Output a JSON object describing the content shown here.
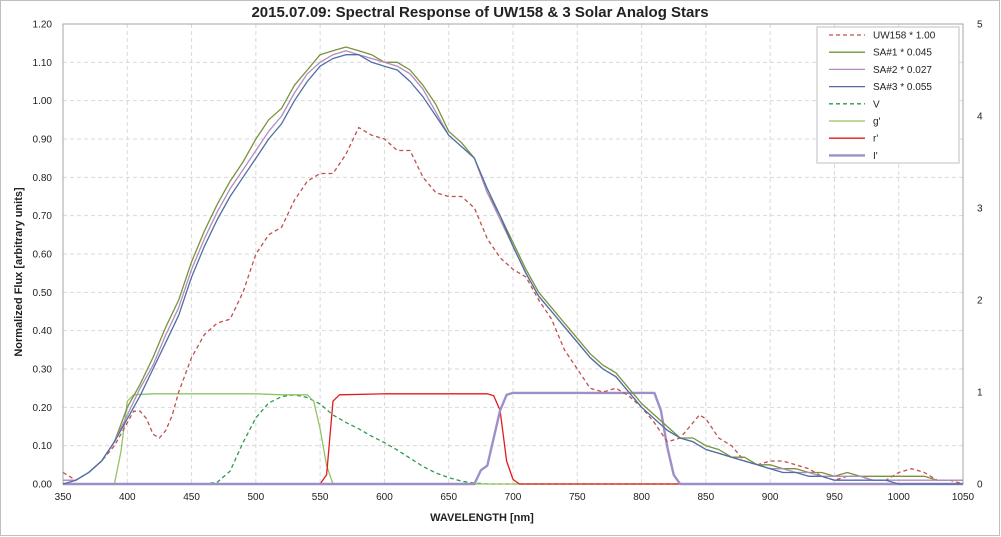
{
  "chart_data": {
    "type": "line",
    "title": "2015.07.09: Spectral Response of UW158 & 3 Solar Analog Stars",
    "xlabel": "WAVELENGTH [nm]",
    "ylabel": "Normalized Flux [arbitrary units]",
    "xlim": [
      350,
      1050
    ],
    "ylim": [
      0,
      1.2
    ],
    "y2lim": [
      0,
      5
    ],
    "grid": true,
    "legend_position": "top-right",
    "x_ticks": [
      "350",
      "400",
      "450",
      "500",
      "550",
      "600",
      "650",
      "700",
      "750",
      "800",
      "850",
      "900",
      "950",
      "1000",
      "1050"
    ],
    "y_ticks": [
      "0.00",
      "0.10",
      "0.20",
      "0.30",
      "0.40",
      "0.50",
      "0.60",
      "0.70",
      "0.80",
      "0.90",
      "1.00",
      "1.10",
      "1.20"
    ],
    "y2_ticks": [
      "0",
      "1",
      "2",
      "3",
      "4",
      "5"
    ],
    "series": [
      {
        "name": "UW158 * 1.00",
        "axis": "left",
        "color": "#c0504d",
        "style": "dashed",
        "x": [
          350,
          360,
          370,
          380,
          390,
          400,
          405,
          410,
          415,
          420,
          425,
          430,
          435,
          440,
          450,
          460,
          470,
          480,
          490,
          500,
          510,
          520,
          530,
          540,
          550,
          560,
          570,
          580,
          590,
          600,
          610,
          620,
          630,
          640,
          650,
          660,
          670,
          680,
          690,
          700,
          710,
          720,
          730,
          740,
          750,
          760,
          770,
          780,
          790,
          800,
          810,
          820,
          830,
          840,
          845,
          850,
          860,
          870,
          880,
          890,
          900,
          910,
          920,
          930,
          940,
          950,
          960,
          970,
          980,
          990,
          1000,
          1010,
          1020,
          1030,
          1040,
          1050
        ],
        "y": [
          0.03,
          0.01,
          0.03,
          0.06,
          0.1,
          0.16,
          0.19,
          0.19,
          0.17,
          0.13,
          0.12,
          0.14,
          0.18,
          0.24,
          0.33,
          0.39,
          0.42,
          0.43,
          0.5,
          0.6,
          0.65,
          0.67,
          0.74,
          0.79,
          0.81,
          0.81,
          0.86,
          0.93,
          0.91,
          0.9,
          0.87,
          0.87,
          0.8,
          0.76,
          0.75,
          0.75,
          0.72,
          0.64,
          0.59,
          0.56,
          0.54,
          0.48,
          0.43,
          0.35,
          0.3,
          0.25,
          0.24,
          0.25,
          0.23,
          0.2,
          0.16,
          0.11,
          0.12,
          0.16,
          0.18,
          0.17,
          0.12,
          0.1,
          0.06,
          0.05,
          0.06,
          0.06,
          0.05,
          0.04,
          0.02,
          0.01,
          0.02,
          0.02,
          0.01,
          0.01,
          0.03,
          0.04,
          0.03,
          0.01,
          0.01,
          0.0
        ]
      },
      {
        "name": "SA#1 * 0.045",
        "axis": "left",
        "color": "#77933c",
        "style": "solid",
        "x": [
          350,
          360,
          370,
          380,
          390,
          400,
          410,
          420,
          430,
          440,
          450,
          460,
          470,
          480,
          490,
          500,
          510,
          520,
          530,
          540,
          550,
          560,
          570,
          580,
          590,
          600,
          610,
          620,
          630,
          640,
          650,
          660,
          670,
          680,
          690,
          700,
          710,
          720,
          730,
          740,
          750,
          760,
          770,
          780,
          790,
          800,
          810,
          820,
          830,
          840,
          850,
          860,
          870,
          880,
          890,
          900,
          910,
          920,
          930,
          940,
          950,
          960,
          970,
          980,
          990,
          1000,
          1010,
          1020,
          1030,
          1040,
          1050
        ],
        "y": [
          0.01,
          0.01,
          0.03,
          0.06,
          0.11,
          0.2,
          0.26,
          0.33,
          0.41,
          0.48,
          0.58,
          0.66,
          0.73,
          0.79,
          0.84,
          0.9,
          0.95,
          0.98,
          1.04,
          1.08,
          1.12,
          1.13,
          1.14,
          1.13,
          1.12,
          1.1,
          1.1,
          1.08,
          1.04,
          0.99,
          0.92,
          0.89,
          0.85,
          0.76,
          0.7,
          0.63,
          0.56,
          0.5,
          0.46,
          0.42,
          0.38,
          0.34,
          0.31,
          0.29,
          0.25,
          0.21,
          0.18,
          0.15,
          0.12,
          0.12,
          0.1,
          0.09,
          0.07,
          0.07,
          0.05,
          0.05,
          0.04,
          0.04,
          0.03,
          0.03,
          0.02,
          0.03,
          0.02,
          0.02,
          0.02,
          0.02,
          0.02,
          0.02,
          0.01,
          0.01,
          0.01
        ]
      },
      {
        "name": "SA#2 * 0.027",
        "axis": "left",
        "color": "#b38bc2",
        "style": "solid",
        "x": [
          350,
          360,
          370,
          380,
          390,
          400,
          410,
          420,
          430,
          440,
          450,
          460,
          470,
          480,
          490,
          500,
          510,
          520,
          530,
          540,
          550,
          560,
          570,
          580,
          590,
          600,
          610,
          620,
          630,
          640,
          650,
          660,
          670,
          680,
          690,
          700,
          710,
          720,
          730,
          740,
          750,
          760,
          770,
          780,
          790,
          800,
          810,
          820,
          830,
          840,
          850,
          860,
          870,
          880,
          890,
          900,
          910,
          920,
          930,
          940,
          950,
          960,
          970,
          980,
          990,
          1000,
          1010,
          1020,
          1030,
          1040,
          1050
        ],
        "y": [
          0.01,
          0.01,
          0.03,
          0.06,
          0.11,
          0.18,
          0.25,
          0.31,
          0.39,
          0.46,
          0.56,
          0.64,
          0.71,
          0.77,
          0.82,
          0.87,
          0.92,
          0.96,
          1.02,
          1.07,
          1.1,
          1.12,
          1.13,
          1.12,
          1.11,
          1.1,
          1.09,
          1.07,
          1.03,
          0.97,
          0.91,
          0.88,
          0.85,
          0.76,
          0.69,
          0.62,
          0.55,
          0.49,
          0.45,
          0.41,
          0.37,
          0.33,
          0.3,
          0.28,
          0.24,
          0.2,
          0.17,
          0.14,
          0.12,
          0.11,
          0.09,
          0.08,
          0.07,
          0.06,
          0.05,
          0.04,
          0.04,
          0.03,
          0.03,
          0.02,
          0.02,
          0.02,
          0.02,
          0.01,
          0.01,
          0.01,
          0.01,
          0.01,
          0.01,
          0.01,
          0.01
        ]
      },
      {
        "name": "SA#3 * 0.055",
        "axis": "left",
        "color": "#4f6fa3",
        "style": "solid",
        "x": [
          350,
          360,
          370,
          380,
          390,
          400,
          410,
          420,
          430,
          440,
          450,
          460,
          470,
          480,
          490,
          500,
          510,
          520,
          530,
          540,
          550,
          560,
          570,
          580,
          590,
          600,
          610,
          620,
          630,
          640,
          650,
          660,
          670,
          680,
          690,
          700,
          710,
          720,
          730,
          740,
          750,
          760,
          770,
          780,
          790,
          800,
          810,
          820,
          830,
          840,
          850,
          860,
          870,
          880,
          890,
          900,
          910,
          920,
          930,
          940,
          950,
          960,
          970,
          980,
          990,
          1000,
          1010,
          1020,
          1030,
          1040,
          1050
        ],
        "y": [
          0.0,
          0.01,
          0.03,
          0.06,
          0.11,
          0.17,
          0.23,
          0.3,
          0.37,
          0.44,
          0.54,
          0.62,
          0.69,
          0.75,
          0.8,
          0.85,
          0.9,
          0.94,
          1.0,
          1.05,
          1.09,
          1.11,
          1.12,
          1.12,
          1.1,
          1.09,
          1.08,
          1.05,
          1.01,
          0.96,
          0.91,
          0.88,
          0.85,
          0.77,
          0.7,
          0.62,
          0.55,
          0.49,
          0.45,
          0.41,
          0.37,
          0.33,
          0.3,
          0.28,
          0.24,
          0.2,
          0.17,
          0.14,
          0.12,
          0.11,
          0.09,
          0.08,
          0.07,
          0.06,
          0.05,
          0.04,
          0.03,
          0.03,
          0.02,
          0.02,
          0.01,
          0.01,
          0.01,
          0.01,
          0.01,
          0.0,
          0.0,
          0.0,
          0.0,
          0.0,
          0.0
        ]
      },
      {
        "name": "V",
        "axis": "right",
        "color": "#2e9a4a",
        "style": "dashed",
        "x": [
          350,
          460,
          470,
          480,
          490,
          500,
          510,
          520,
          530,
          540,
          550,
          560,
          570,
          580,
          590,
          600,
          610,
          620,
          630,
          640,
          650,
          660,
          670,
          680,
          1050
        ],
        "y": [
          0,
          0,
          0.02,
          0.14,
          0.45,
          0.72,
          0.88,
          0.95,
          0.97,
          0.94,
          0.87,
          0.75,
          0.67,
          0.6,
          0.52,
          0.45,
          0.37,
          0.28,
          0.19,
          0.12,
          0.07,
          0.03,
          0.01,
          0,
          0
        ]
      },
      {
        "name": "g'",
        "axis": "right",
        "color": "#92c36a",
        "style": "solid",
        "x": [
          350,
          390,
          395,
          400,
          405,
          420,
          450,
          500,
          520,
          540,
          545,
          550,
          555,
          560,
          1050
        ],
        "y": [
          0,
          0,
          0.35,
          0.9,
          0.97,
          0.98,
          0.98,
          0.98,
          0.97,
          0.97,
          0.9,
          0.6,
          0.2,
          0,
          0
        ]
      },
      {
        "name": "r'",
        "axis": "right",
        "color": "#e31a1c",
        "style": "solid",
        "x": [
          350,
          550,
          555,
          560,
          565,
          600,
          650,
          680,
          685,
          690,
          695,
          700,
          705,
          1050
        ],
        "y": [
          0,
          0,
          0.1,
          0.9,
          0.97,
          0.98,
          0.98,
          0.98,
          0.96,
          0.8,
          0.25,
          0.05,
          0,
          0
        ]
      },
      {
        "name": "I'",
        "axis": "right",
        "color": "#9f8fc9",
        "style": "solid",
        "x": [
          350,
          670,
          675,
          680,
          685,
          690,
          695,
          700,
          750,
          800,
          810,
          815,
          820,
          825,
          830,
          1050
        ],
        "y": [
          0,
          0,
          0.15,
          0.2,
          0.5,
          0.8,
          0.97,
          0.99,
          0.99,
          0.99,
          0.99,
          0.8,
          0.4,
          0.1,
          0,
          0
        ]
      }
    ]
  }
}
